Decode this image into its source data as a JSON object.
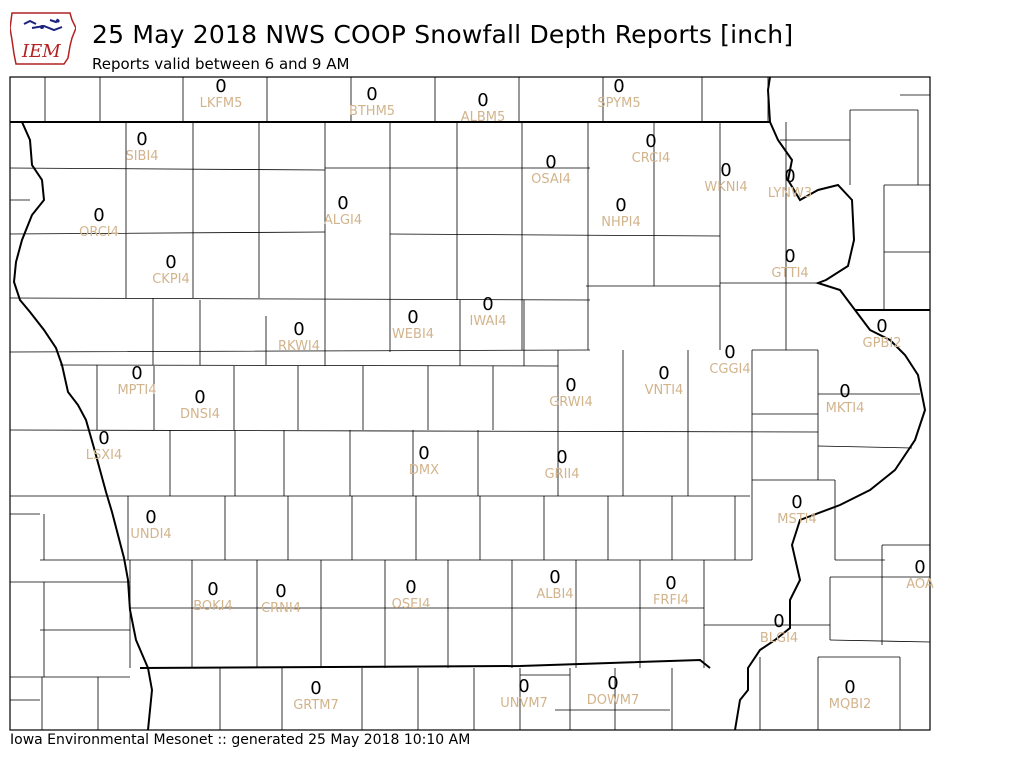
{
  "header": {
    "title": "25 May 2018 NWS COOP Snowfall Depth Reports [inch]",
    "subtitle": "Reports valid between 6 and 9 AM"
  },
  "logo": {
    "text": "IEM",
    "icon": "iowa-state-outline-logo"
  },
  "footer": {
    "text": "Iowa Environmental Mesonet :: generated 25 May 2018 10:10 AM"
  },
  "stations": [
    {
      "id": "LKFM5",
      "value": "0"
    },
    {
      "id": "BTHM5",
      "value": "0"
    },
    {
      "id": "ALBM5",
      "value": "0"
    },
    {
      "id": "SPYM5",
      "value": "0"
    },
    {
      "id": "SIBI4",
      "value": "0"
    },
    {
      "id": "CRCI4",
      "value": "0"
    },
    {
      "id": "OSAI4",
      "value": "0"
    },
    {
      "id": "WKNI4",
      "value": "0"
    },
    {
      "id": "LYNW3",
      "value": "0"
    },
    {
      "id": "ORCI4",
      "value": "0"
    },
    {
      "id": "ALGI4",
      "value": "0"
    },
    {
      "id": "NHPI4",
      "value": "0"
    },
    {
      "id": "CKPI4",
      "value": "0"
    },
    {
      "id": "GTTI4",
      "value": "0"
    },
    {
      "id": "RKWI4",
      "value": "0"
    },
    {
      "id": "WEBI4",
      "value": "0"
    },
    {
      "id": "IWAI4",
      "value": "0"
    },
    {
      "id": "GPBI2",
      "value": "0"
    },
    {
      "id": "MPTI4",
      "value": "0"
    },
    {
      "id": "DNSI4",
      "value": "0"
    },
    {
      "id": "GRWI4",
      "value": "0"
    },
    {
      "id": "VNTI4",
      "value": "0"
    },
    {
      "id": "CGGI4",
      "value": "0"
    },
    {
      "id": "MKTI4",
      "value": "0"
    },
    {
      "id": "LSXI4",
      "value": "0"
    },
    {
      "id": "DMX",
      "value": "0"
    },
    {
      "id": "GRII4",
      "value": "0"
    },
    {
      "id": "MSTI4",
      "value": "0"
    },
    {
      "id": "UNDI4",
      "value": "0"
    },
    {
      "id": "AOA",
      "value": "0"
    },
    {
      "id": "BOKI4",
      "value": "0"
    },
    {
      "id": "CRNI4",
      "value": "0"
    },
    {
      "id": "OSEI4",
      "value": "0"
    },
    {
      "id": "ALBI4",
      "value": "0"
    },
    {
      "id": "FRFI4",
      "value": "0"
    },
    {
      "id": "BLGI4",
      "value": "0"
    },
    {
      "id": "GRTM7",
      "value": "0"
    },
    {
      "id": "UNVM7",
      "value": "0"
    },
    {
      "id": "DOWM7",
      "value": "0"
    },
    {
      "id": "MQBI2",
      "value": "0"
    }
  ]
}
